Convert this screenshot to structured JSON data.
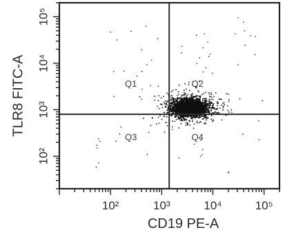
{
  "chart_data": {
    "type": "scatter",
    "xlabel": "CD19 PE-A",
    "ylabel": "TLR8 FITC-A",
    "x_scale": "log",
    "y_scale": "log",
    "xlim": [
      10,
      200000
    ],
    "ylim": [
      20,
      200000
    ],
    "x_tick_labels": [
      "10²",
      "10³",
      "10⁴",
      "10⁵"
    ],
    "y_tick_labels": [
      "10²",
      "10³",
      "10⁴",
      "10⁵"
    ],
    "x_ticks": [
      100,
      1000,
      10000,
      100000
    ],
    "y_ticks": [
      100,
      1000,
      10000,
      100000
    ],
    "gate": {
      "x": 1400,
      "y": 800
    },
    "quadrants": [
      "Q1",
      "Q2",
      "Q3",
      "Q4"
    ],
    "population_center": {
      "x": 3500,
      "y": 1100
    },
    "grid": false,
    "legend": "none",
    "colors": {
      "dots": "#111111",
      "axes": "#222222",
      "gate_lines": "#2a2a2a"
    }
  }
}
